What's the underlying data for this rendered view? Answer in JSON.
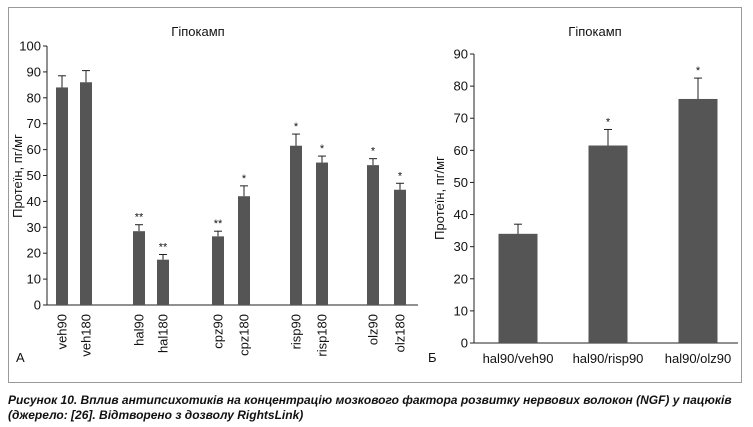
{
  "figure": {
    "caption": "Рисунок 10. Вплив антипсихотиків на концентрацію мозкового фактора розвитку нервових волокон (NGF) у пацюків (джерело: [26]. Відтворено з дозволу RightsLink)"
  },
  "colors": {
    "bar": "#555555",
    "axis": "#222222",
    "text": "#111111"
  },
  "chart_data": [
    {
      "type": "bar",
      "panel_label": "А",
      "title": "Гіпокамп",
      "xlabel": "",
      "ylabel": "Протеїн, пг/мг",
      "ylim": [
        0,
        100
      ],
      "yticks": [
        0,
        10,
        20,
        30,
        40,
        50,
        60,
        70,
        80,
        90,
        100
      ],
      "grid": false,
      "legend": "none",
      "x_label_orientation": "vertical",
      "categories": [
        "veh90",
        "veh180",
        "hal90",
        "hal180",
        "cpz90",
        "cpz180",
        "risp90",
        "risp180",
        "olz90",
        "olz180"
      ],
      "groups": [
        [
          "veh90",
          "veh180"
        ],
        [
          "hal90",
          "hal180"
        ],
        [
          "cpz90",
          "cpz180"
        ],
        [
          "risp90",
          "risp180"
        ],
        [
          "olz90",
          "olz180"
        ]
      ],
      "values": [
        84,
        86,
        28.5,
        17.5,
        26.5,
        42,
        61.5,
        55,
        54,
        44.5
      ],
      "errors": [
        4.5,
        4.5,
        2.5,
        2,
        2,
        4,
        4.5,
        2.5,
        2.5,
        2.5
      ],
      "annotations": [
        "",
        "",
        "**",
        "**",
        "**",
        "*",
        "*",
        "*",
        "*",
        "*"
      ]
    },
    {
      "type": "bar",
      "panel_label": "Б",
      "title": "Гіпокамп",
      "xlabel": "",
      "ylabel": "Протеїн, пг/мг",
      "ylim": [
        0,
        90
      ],
      "yticks": [
        0,
        10,
        20,
        30,
        40,
        50,
        60,
        70,
        80,
        90
      ],
      "grid": false,
      "legend": "none",
      "x_label_orientation": "horizontal",
      "categories": [
        "hal90/veh90",
        "hal90/risp90",
        "hal90/olz90"
      ],
      "values": [
        34,
        61.5,
        76
      ],
      "errors": [
        3,
        5,
        6.5
      ],
      "annotations": [
        "",
        "*",
        "*"
      ]
    }
  ]
}
